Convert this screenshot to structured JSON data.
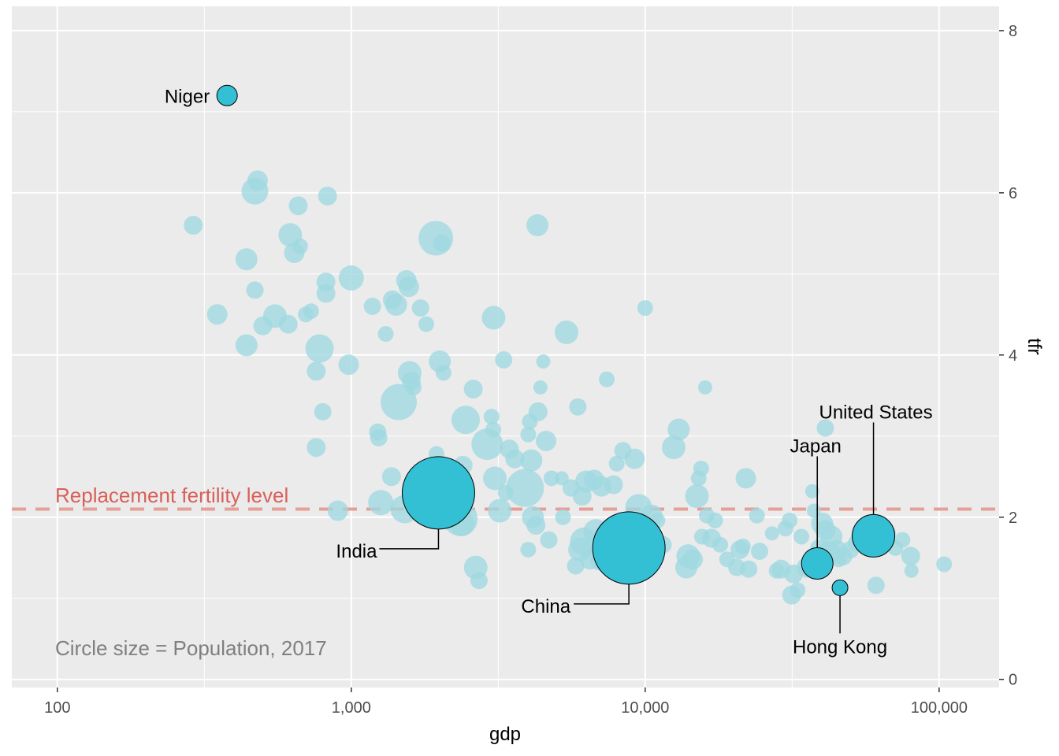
{
  "chart_data": {
    "type": "scatter",
    "x_scale": "log10",
    "xlabel": "gdp",
    "ylabel": "tfr",
    "xlim": [
      70,
      160000
    ],
    "ylim": [
      -0.1,
      8.3
    ],
    "x_ticks": [
      100,
      1000,
      10000,
      100000
    ],
    "x_tick_labels": [
      "100",
      "1,000",
      "10,000",
      "100,000"
    ],
    "y_ticks": [
      0,
      2,
      4,
      6,
      8
    ],
    "y_tick_labels": [
      "0",
      "2",
      "4",
      "6",
      "8"
    ],
    "y_axis_position": "right",
    "grid": true,
    "colors": {
      "panel": "#ebebeb",
      "grid": "#ffffff",
      "point": "#33bfd4",
      "point_background": "#9fd8e0",
      "reference_line": "#e69f96",
      "reference_text": "#d95f58",
      "note_text": "#7f7f7f"
    },
    "reference_line": {
      "y": 2.1,
      "label": "Replacement fertility level"
    },
    "size_note": "Circle size = Population, 2017",
    "highlighted": [
      {
        "name": "Niger",
        "gdp": 378,
        "tfr": 7.2,
        "size": 13
      },
      {
        "name": "India",
        "gdp": 1980,
        "tfr": 2.3,
        "size": 46
      },
      {
        "name": "China",
        "gdp": 8800,
        "tfr": 1.62,
        "size": 46
      },
      {
        "name": "Japan",
        "gdp": 38500,
        "tfr": 1.43,
        "size": 20
      },
      {
        "name": "United States",
        "gdp": 59800,
        "tfr": 1.77,
        "size": 27
      },
      {
        "name": "Hong Kong",
        "gdp": 46000,
        "tfr": 1.13,
        "size": 10
      }
    ],
    "background_points": [
      [
        290,
        5.6,
        12
      ],
      [
        350,
        4.5,
        13
      ],
      [
        440,
        5.18,
        14
      ],
      [
        440,
        4.12,
        14
      ],
      [
        480,
        6.15,
        13
      ],
      [
        470,
        6.02,
        17
      ],
      [
        470,
        4.8,
        11
      ],
      [
        500,
        4.36,
        12
      ],
      [
        550,
        4.48,
        15
      ],
      [
        610,
        4.38,
        12
      ],
      [
        620,
        5.48,
        15
      ],
      [
        640,
        5.26,
        13
      ],
      [
        660,
        5.84,
        12
      ],
      [
        670,
        5.34,
        10
      ],
      [
        700,
        4.5,
        10
      ],
      [
        730,
        4.54,
        10
      ],
      [
        760,
        2.86,
        12
      ],
      [
        760,
        3.8,
        12
      ],
      [
        780,
        4.08,
        18
      ],
      [
        800,
        3.3,
        11
      ],
      [
        820,
        4.9,
        12
      ],
      [
        820,
        4.76,
        12
      ],
      [
        830,
        5.96,
        12
      ],
      [
        900,
        2.08,
        13
      ],
      [
        980,
        3.88,
        13
      ],
      [
        1000,
        4.95,
        16
      ],
      [
        1180,
        4.6,
        11
      ],
      [
        1230,
        3.05,
        11
      ],
      [
        1240,
        2.98,
        11
      ],
      [
        1260,
        2.18,
        16
      ],
      [
        1310,
        4.26,
        10
      ],
      [
        1370,
        2.5,
        12
      ],
      [
        1380,
        4.68,
        12
      ],
      [
        1420,
        4.62,
        14
      ],
      [
        1450,
        3.42,
        23
      ],
      [
        1520,
        2.1,
        18
      ],
      [
        1540,
        4.92,
        13
      ],
      [
        1570,
        4.84,
        13
      ],
      [
        1580,
        3.78,
        15
      ],
      [
        1600,
        3.68,
        12
      ],
      [
        1630,
        3.6,
        10
      ],
      [
        1720,
        4.58,
        11
      ],
      [
        1800,
        4.38,
        10
      ],
      [
        1940,
        5.44,
        22
      ],
      [
        1950,
        2.78,
        10
      ],
      [
        2000,
        3.92,
        14
      ],
      [
        2030,
        5.38,
        11
      ],
      [
        2060,
        3.78,
        10
      ],
      [
        2350,
        1.98,
        22
      ],
      [
        2380,
        1.92,
        16
      ],
      [
        2400,
        2.64,
        12
      ],
      [
        2450,
        3.2,
        18
      ],
      [
        2600,
        3.58,
        12
      ],
      [
        2650,
        1.38,
        15
      ],
      [
        2720,
        1.22,
        11
      ],
      [
        2900,
        2.9,
        20
      ],
      [
        3000,
        3.24,
        10
      ],
      [
        3040,
        3.08,
        10
      ],
      [
        3050,
        4.46,
        15
      ],
      [
        3080,
        2.48,
        15
      ],
      [
        3200,
        2.08,
        15
      ],
      [
        3300,
        3.94,
        11
      ],
      [
        3350,
        2.3,
        10
      ],
      [
        3450,
        2.84,
        12
      ],
      [
        3600,
        2.72,
        12
      ],
      [
        3900,
        2.36,
        24
      ],
      [
        4000,
        3.02,
        10
      ],
      [
        4050,
        3.18,
        10
      ],
      [
        4000,
        1.6,
        10
      ],
      [
        4100,
        2.7,
        14
      ],
      [
        4150,
        2.0,
        14
      ],
      [
        4250,
        1.9,
        12
      ],
      [
        4300,
        5.6,
        14
      ],
      [
        4320,
        3.3,
        12
      ],
      [
        4400,
        3.6,
        9
      ],
      [
        4500,
        3.92,
        9
      ],
      [
        4600,
        2.94,
        13
      ],
      [
        4700,
        1.72,
        11
      ],
      [
        4800,
        2.48,
        10
      ],
      [
        5200,
        2.48,
        9
      ],
      [
        5250,
        2.0,
        10
      ],
      [
        5400,
        4.28,
        15
      ],
      [
        5600,
        2.36,
        11
      ],
      [
        5800,
        1.4,
        11
      ],
      [
        5900,
        3.36,
        11
      ],
      [
        6000,
        1.6,
        15
      ],
      [
        6100,
        2.26,
        12
      ],
      [
        6200,
        1.7,
        18
      ],
      [
        6300,
        2.44,
        14
      ],
      [
        6500,
        1.48,
        13
      ],
      [
        6700,
        2.46,
        13
      ],
      [
        6800,
        1.82,
        16
      ],
      [
        7000,
        1.46,
        12
      ],
      [
        7100,
        2.38,
        13
      ],
      [
        7300,
        1.62,
        14
      ],
      [
        7400,
        3.7,
        10
      ],
      [
        7600,
        1.72,
        14
      ],
      [
        7800,
        2.4,
        12
      ],
      [
        8000,
        2.66,
        10
      ],
      [
        8200,
        1.52,
        12
      ],
      [
        8400,
        2.82,
        11
      ],
      [
        8700,
        1.72,
        12
      ],
      [
        9200,
        2.72,
        13
      ],
      [
        9500,
        2.12,
        17
      ],
      [
        10000,
        4.58,
        10
      ],
      [
        10500,
        2.02,
        14
      ],
      [
        11000,
        1.96,
        10
      ],
      [
        11500,
        1.66,
        11
      ],
      [
        12500,
        2.86,
        15
      ],
      [
        13000,
        3.08,
        14
      ],
      [
        13800,
        1.38,
        14
      ],
      [
        14000,
        1.52,
        15
      ],
      [
        14500,
        1.48,
        13
      ],
      [
        15000,
        2.26,
        15
      ],
      [
        15200,
        2.48,
        10
      ],
      [
        15500,
        2.6,
        10
      ],
      [
        15600,
        1.76,
        10
      ],
      [
        16000,
        3.6,
        9
      ],
      [
        16200,
        2.02,
        10
      ],
      [
        16800,
        1.74,
        12
      ],
      [
        17300,
        1.96,
        10
      ],
      [
        18000,
        1.66,
        10
      ],
      [
        19000,
        1.48,
        10
      ],
      [
        20500,
        1.38,
        11
      ],
      [
        21000,
        1.6,
        12
      ],
      [
        21500,
        1.64,
        10
      ],
      [
        22000,
        2.48,
        13
      ],
      [
        22500,
        1.36,
        11
      ],
      [
        24000,
        2.02,
        10
      ],
      [
        24500,
        1.58,
        11
      ],
      [
        27000,
        1.8,
        9
      ],
      [
        28000,
        1.34,
        10
      ],
      [
        29000,
        1.36,
        12
      ],
      [
        30000,
        1.86,
        10
      ],
      [
        31000,
        1.96,
        10
      ],
      [
        31500,
        1.04,
        12
      ],
      [
        32000,
        1.3,
        12
      ],
      [
        33000,
        1.1,
        10
      ],
      [
        34000,
        1.76,
        10
      ],
      [
        35500,
        1.38,
        13
      ],
      [
        37000,
        2.32,
        9
      ],
      [
        37500,
        2.08,
        9
      ],
      [
        39000,
        1.62,
        11
      ],
      [
        40000,
        1.92,
        14
      ],
      [
        41000,
        1.84,
        13
      ],
      [
        42000,
        1.56,
        15
      ],
      [
        43000,
        1.76,
        14
      ],
      [
        45000,
        1.6,
        12
      ],
      [
        45500,
        1.48,
        10
      ],
      [
        47000,
        1.52,
        12
      ],
      [
        50000,
        1.6,
        11
      ],
      [
        52000,
        1.68,
        10
      ],
      [
        54000,
        1.76,
        12
      ],
      [
        56000,
        1.86,
        10
      ],
      [
        61000,
        1.16,
        11
      ],
      [
        67000,
        1.8,
        10
      ],
      [
        71000,
        1.62,
        10
      ],
      [
        75000,
        1.72,
        10
      ],
      [
        80000,
        1.52,
        12
      ],
      [
        80500,
        1.34,
        9
      ],
      [
        104000,
        1.42,
        10
      ],
      [
        41000,
        3.1,
        11
      ]
    ]
  }
}
